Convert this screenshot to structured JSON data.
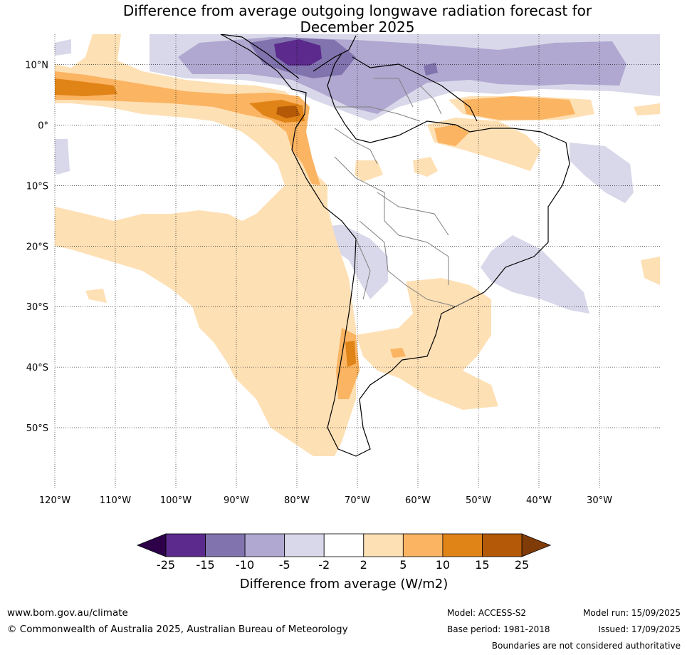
{
  "title_line1": "Difference from average outgoing longwave radiation forecast for",
  "title_line2": "December 2025",
  "map": {
    "lon_ticks": [
      "120°W",
      "110°W",
      "100°W",
      "90°W",
      "80°W",
      "70°W",
      "60°W",
      "50°W",
      "40°W",
      "30°W"
    ],
    "lat_ticks": [
      "10°N",
      "0°",
      "10°S",
      "20°S",
      "30°S",
      "40°S",
      "50°S"
    ],
    "lon_range": [
      -120,
      -20
    ],
    "lat_range": [
      -60,
      15
    ]
  },
  "colorbar": {
    "title": "Difference from average (W/m2)",
    "labels": [
      "-25",
      "-15",
      "-10",
      "-5",
      "-2",
      "2",
      "5",
      "10",
      "15",
      "25"
    ],
    "colors": [
      "#5b2a8c",
      "#8174ae",
      "#b0a8d0",
      "#d9d8ea",
      "#ffffff",
      "#fee0b5",
      "#fbb462",
      "#e08418",
      "#b35907"
    ],
    "extend_low_color": "#2d0049",
    "extend_high_color": "#7f3b08"
  },
  "footer": {
    "website": "www.bom.gov.au/climate",
    "copyright": "© Commonwealth of Australia 2025, Australian Bureau of Meteorology",
    "model": "Model: ACCESS-S2",
    "base_period": "Base period: 1981-2018",
    "model_run": "Model run: 15/09/2025",
    "issued": "Issued: 17/09/2025",
    "disclaimer": "Boundaries are not considered authoritative"
  }
}
